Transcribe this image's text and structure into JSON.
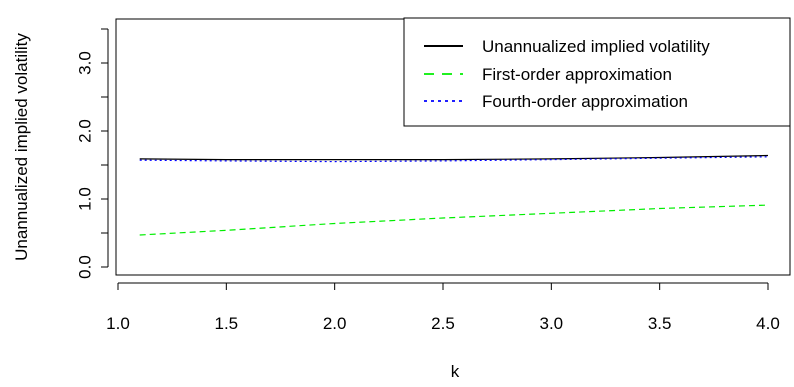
{
  "chart_data": {
    "type": "line",
    "xlabel": "k",
    "ylabel": "Unannualized implied volatility",
    "xlim": [
      1.0,
      4.0
    ],
    "ylim": [
      0.0,
      3.5
    ],
    "x_ticks": [
      "1.0",
      "1.5",
      "2.0",
      "2.5",
      "3.0",
      "3.5",
      "4.0"
    ],
    "y_ticks": [
      "0.0",
      "1.0",
      "2.0",
      "3.0"
    ],
    "legend_position": "top-right",
    "series": [
      {
        "name": "Unannualized implied volatility",
        "color": "#000000",
        "style": "solid",
        "x": [
          1.1,
          1.5,
          2.0,
          2.5,
          3.0,
          3.5,
          4.0
        ],
        "y": [
          1.59,
          1.58,
          1.58,
          1.58,
          1.59,
          1.61,
          1.64
        ]
      },
      {
        "name": "First-order approximation",
        "color": "#00ee00",
        "style": "dashed",
        "x": [
          1.1,
          1.5,
          2.0,
          2.5,
          3.0,
          3.5,
          4.0
        ],
        "y": [
          0.47,
          0.54,
          0.64,
          0.72,
          0.79,
          0.86,
          0.91
        ]
      },
      {
        "name": "Fourth-order approximation",
        "color": "#0000ff",
        "style": "dotted",
        "x": [
          1.1,
          1.5,
          2.0,
          2.5,
          3.0,
          3.5,
          4.0
        ],
        "y": [
          1.57,
          1.56,
          1.55,
          1.56,
          1.58,
          1.6,
          1.62
        ]
      }
    ]
  }
}
